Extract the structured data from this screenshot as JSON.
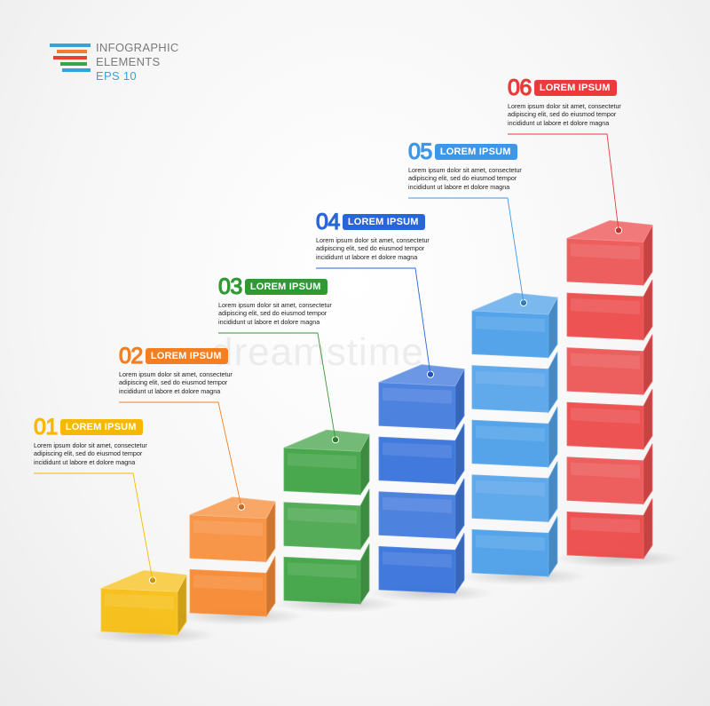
{
  "logo": {
    "line1": "INFOGRAPHIC",
    "line2": "ELEMENTS",
    "line3": "EPS 10",
    "stripe_colors": [
      "#33a3dc",
      "#f57a2e",
      "#e84132",
      "#3aa449",
      "#33a3dc"
    ]
  },
  "watermark": "dreamstime",
  "chart_data": {
    "type": "bar",
    "categories": [
      "01",
      "02",
      "03",
      "04",
      "05",
      "06"
    ],
    "values": [
      1,
      2,
      3,
      4,
      5,
      6
    ],
    "labels": [
      "LOREM IPSUM",
      "LOREM IPSUM",
      "LOREM IPSUM",
      "LOREM IPSUM",
      "LOREM IPSUM",
      "LOREM IPSUM"
    ],
    "texts": [
      "Lorem ipsum dolor sit amet, consectetur\nadipiscing elit, sed do eiusmod tempor\nincididunt ut labore et dolore magna",
      "Lorem ipsum dolor sit amet, consectetur\nadipiscing elit, sed do eiusmod tempor\nincididunt ut labore et dolore magna",
      "Lorem ipsum dolor sit amet, consectetur\nadipiscing elit, sed do eiusmod tempor\nincididunt ut labore et dolore magna",
      "Lorem ipsum dolor sit amet, consectetur\nadipiscing elit, sed do eiusmod tempor\nincididunt ut labore et dolore magna",
      "Lorem ipsum dolor sit amet, consectetur\nadipiscing elit, sed do eiusmod tempor\nincididunt ut labore et dolore magna",
      "Lorem ipsum dolor sit amet, consectetur\nadipiscing elit, sed do eiusmod tempor\nincididunt ut labore et dolore magna"
    ],
    "colors": [
      "#f6b800",
      "#f57e20",
      "#2f9a34",
      "#2766d8",
      "#3d97e6",
      "#ea3a3a"
    ],
    "title": "",
    "xlabel": "",
    "ylabel": "",
    "ylim": [
      0,
      6
    ],
    "grid": false,
    "legend": "none"
  }
}
